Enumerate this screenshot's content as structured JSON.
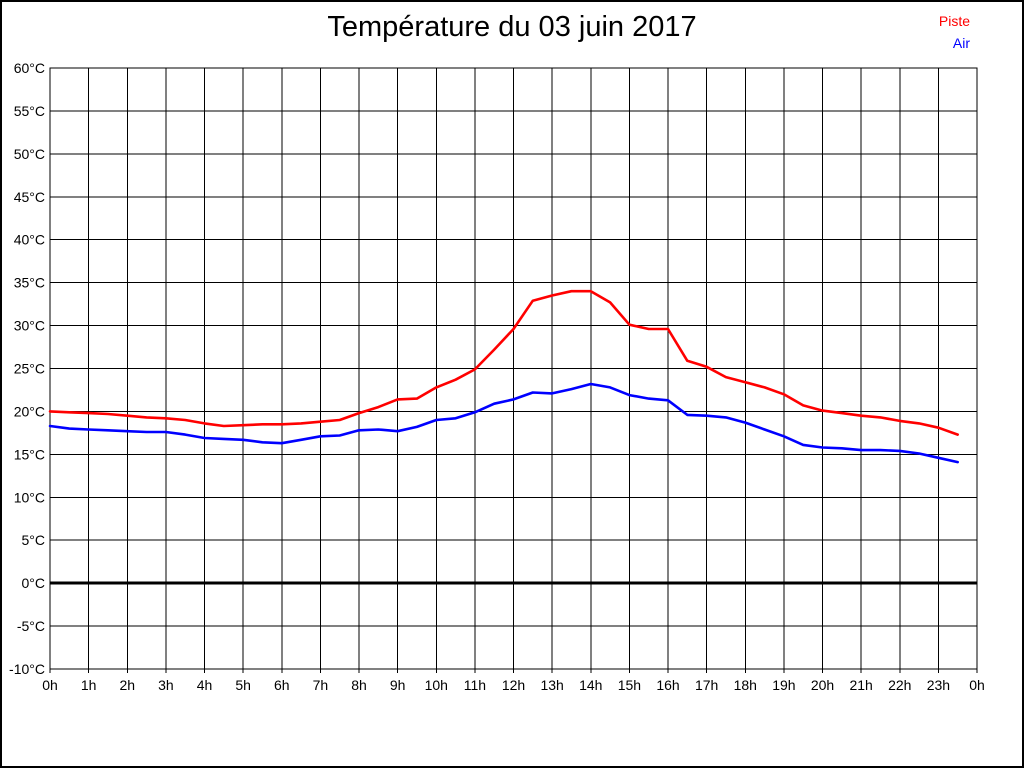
{
  "header": {
    "title": "Température du 03 juin 2017"
  },
  "chart_data": {
    "type": "line",
    "title": "Température du 03 juin 2017",
    "xlabel": "",
    "ylabel": "",
    "x_unit": "h",
    "y_unit": "°C",
    "xlim": [
      0,
      24
    ],
    "ylim": [
      -10,
      60
    ],
    "grid": true,
    "zero_line": true,
    "legend_position": "top-right",
    "x_ticks": [
      0,
      1,
      2,
      3,
      4,
      5,
      6,
      7,
      8,
      9,
      10,
      11,
      12,
      13,
      14,
      15,
      16,
      17,
      18,
      19,
      20,
      21,
      22,
      23,
      24
    ],
    "x_tick_labels": [
      "0h",
      "1h",
      "2h",
      "3h",
      "4h",
      "5h",
      "6h",
      "7h",
      "8h",
      "9h",
      "10h",
      "11h",
      "12h",
      "13h",
      "14h",
      "15h",
      "16h",
      "17h",
      "18h",
      "19h",
      "20h",
      "21h",
      "22h",
      "23h",
      "0h"
    ],
    "y_ticks": [
      60,
      55,
      50,
      45,
      40,
      35,
      30,
      25,
      20,
      15,
      10,
      5,
      0,
      -5,
      -10
    ],
    "y_tick_labels": [
      "60°C",
      "55°C",
      "50°C",
      "45°C",
      "40°C",
      "35°C",
      "30°C",
      "25°C",
      "20°C",
      "15°C",
      "10°C",
      "5°C",
      "0°C",
      "-5°C",
      "-10°C"
    ],
    "x": [
      0,
      0.5,
      1,
      1.5,
      2,
      2.5,
      3,
      3.5,
      4,
      4.5,
      5,
      5.5,
      6,
      6.5,
      7,
      7.5,
      8,
      8.5,
      9,
      9.5,
      10,
      10.5,
      11,
      11.5,
      12,
      12.5,
      13,
      13.5,
      14,
      14.5,
      15,
      15.5,
      16,
      16.5,
      17,
      17.5,
      18,
      18.5,
      19,
      19.5,
      20,
      20.5,
      21,
      21.5,
      22,
      22.5,
      23,
      23.5
    ],
    "series": [
      {
        "name": "Piste",
        "color": "#ff0000",
        "values": [
          20.0,
          19.9,
          19.8,
          19.7,
          19.5,
          19.3,
          19.2,
          19.0,
          18.6,
          18.3,
          18.4,
          18.5,
          18.5,
          18.6,
          18.8,
          19.0,
          19.8,
          20.5,
          21.4,
          21.5,
          22.8,
          23.7,
          24.9,
          27.2,
          29.6,
          32.9,
          33.5,
          34.0,
          34.0,
          32.7,
          30.1,
          29.6,
          29.6,
          25.9,
          25.2,
          24.0,
          23.4,
          22.8,
          22.0,
          20.7,
          20.1,
          19.8,
          19.5,
          19.3,
          18.9,
          18.6,
          18.1,
          17.3
        ]
      },
      {
        "name": "Air",
        "color": "#0000ff",
        "values": [
          18.3,
          18.0,
          17.9,
          17.8,
          17.7,
          17.6,
          17.6,
          17.3,
          16.9,
          16.8,
          16.7,
          16.4,
          16.3,
          16.7,
          17.1,
          17.2,
          17.8,
          17.9,
          17.7,
          18.2,
          19.0,
          19.2,
          19.9,
          20.9,
          21.4,
          22.2,
          22.1,
          22.6,
          23.2,
          22.8,
          21.9,
          21.5,
          21.3,
          19.6,
          19.5,
          19.3,
          18.7,
          17.9,
          17.1,
          16.1,
          15.8,
          15.7,
          15.5,
          15.5,
          15.4,
          15.1,
          14.6,
          14.1
        ]
      }
    ]
  }
}
